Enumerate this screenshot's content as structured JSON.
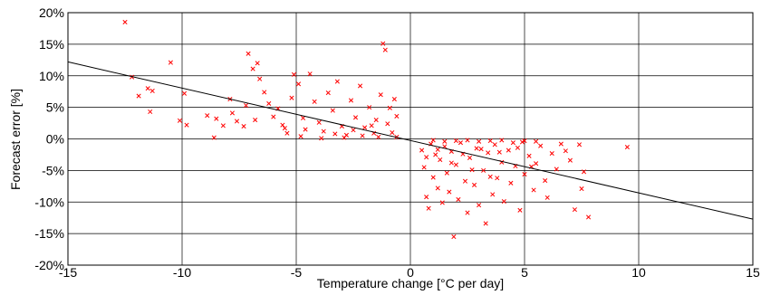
{
  "chart_data": {
    "type": "scatter",
    "xlabel": "Temperature change [°C per day]",
    "ylabel": "Forecast error [%]",
    "xlim": [
      -15,
      15
    ],
    "ylim": [
      -20,
      20
    ],
    "x_ticks": [
      -15,
      -10,
      -5,
      0,
      5,
      10,
      15
    ],
    "y_ticks": [
      -20,
      -15,
      -10,
      -5,
      0,
      5,
      10,
      15,
      20
    ],
    "x_tick_labels": [
      "-15",
      "-10",
      "-5",
      "0",
      "5",
      "10",
      "15"
    ],
    "y_tick_labels": [
      "-20%",
      "-15%",
      "-10%",
      "-5%",
      "0%",
      "5%",
      "10%",
      "15%",
      "20%"
    ],
    "grid": true,
    "marker": "x",
    "marker_color": "#ff0000",
    "series": [
      {
        "values": [
          {
            "x": -12.5,
            "y": 18.5
          },
          {
            "x": -12.2,
            "y": 9.8
          },
          {
            "x": -11.9,
            "y": 6.8
          },
          {
            "x": -11.5,
            "y": 8.0
          },
          {
            "x": -11.3,
            "y": 7.6
          },
          {
            "x": -11.4,
            "y": 4.3
          },
          {
            "x": -10.5,
            "y": 12.1
          },
          {
            "x": -10.1,
            "y": 2.9
          },
          {
            "x": -9.9,
            "y": 7.2
          },
          {
            "x": -9.8,
            "y": 2.2
          },
          {
            "x": -8.9,
            "y": 3.7
          },
          {
            "x": -8.6,
            "y": 0.2
          },
          {
            "x": -8.5,
            "y": 3.2
          },
          {
            "x": -8.2,
            "y": 2.1
          },
          {
            "x": -7.9,
            "y": 6.3
          },
          {
            "x": -7.8,
            "y": 4.1
          },
          {
            "x": -7.6,
            "y": 2.8
          },
          {
            "x": -7.3,
            "y": 2.0
          },
          {
            "x": -7.1,
            "y": 13.5
          },
          {
            "x": -6.9,
            "y": 11.1
          },
          {
            "x": -6.7,
            "y": 12.0
          },
          {
            "x": -6.6,
            "y": 9.5
          },
          {
            "x": -6.4,
            "y": 7.4
          },
          {
            "x": -6.2,
            "y": 5.6
          },
          {
            "x": -6.0,
            "y": 3.5
          },
          {
            "x": -5.8,
            "y": 4.8
          },
          {
            "x": -5.6,
            "y": 2.2
          },
          {
            "x": -5.4,
            "y": 0.9
          },
          {
            "x": -5.2,
            "y": 6.5
          },
          {
            "x": -5.1,
            "y": 10.2
          },
          {
            "x": -4.9,
            "y": 8.7
          },
          {
            "x": -4.7,
            "y": 3.3
          },
          {
            "x": -4.6,
            "y": 1.5
          },
          {
            "x": -4.4,
            "y": 10.3
          },
          {
            "x": -4.2,
            "y": 5.9
          },
          {
            "x": -4.0,
            "y": 2.6
          },
          {
            "x": -3.8,
            "y": 1.2
          },
          {
            "x": -3.6,
            "y": 7.3
          },
          {
            "x": -3.4,
            "y": 4.5
          },
          {
            "x": -3.2,
            "y": 9.1
          },
          {
            "x": -3.0,
            "y": 2.0
          },
          {
            "x": -2.8,
            "y": 0.6
          },
          {
            "x": -2.6,
            "y": 6.1
          },
          {
            "x": -2.4,
            "y": 3.4
          },
          {
            "x": -2.2,
            "y": 8.4
          },
          {
            "x": -2.0,
            "y": 1.8
          },
          {
            "x": -1.8,
            "y": 5.0
          },
          {
            "x": -1.6,
            "y": 0.9
          },
          {
            "x": -1.5,
            "y": 3.0
          },
          {
            "x": -1.3,
            "y": 7.0
          },
          {
            "x": -1.2,
            "y": 15.1
          },
          {
            "x": -1.1,
            "y": 14.1
          },
          {
            "x": -1.0,
            "y": 2.4
          },
          {
            "x": -0.9,
            "y": 4.9
          },
          {
            "x": -0.8,
            "y": 1.0
          },
          {
            "x": -0.7,
            "y": 6.3
          },
          {
            "x": -0.6,
            "y": 0.3
          },
          {
            "x": -0.6,
            "y": 3.6
          },
          {
            "x": -5.5,
            "y": 1.7
          },
          {
            "x": -4.8,
            "y": 0.4
          },
          {
            "x": -3.9,
            "y": 0.1
          },
          {
            "x": -3.3,
            "y": 0.8
          },
          {
            "x": -2.9,
            "y": 0.2
          },
          {
            "x": -2.5,
            "y": 1.4
          },
          {
            "x": -2.1,
            "y": 0.5
          },
          {
            "x": -1.7,
            "y": 2.1
          },
          {
            "x": -1.4,
            "y": 0.3
          },
          {
            "x": -6.8,
            "y": 3.0
          },
          {
            "x": -7.2,
            "y": 5.3
          },
          {
            "x": 0.5,
            "y": -1.8
          },
          {
            "x": 0.6,
            "y": -4.5
          },
          {
            "x": 0.7,
            "y": -9.2
          },
          {
            "x": 0.8,
            "y": -11.0
          },
          {
            "x": 0.9,
            "y": -0.8
          },
          {
            "x": 1.0,
            "y": -6.1
          },
          {
            "x": 1.1,
            "y": -2.5
          },
          {
            "x": 1.2,
            "y": -7.8
          },
          {
            "x": 1.3,
            "y": -3.3
          },
          {
            "x": 1.4,
            "y": -10.1
          },
          {
            "x": 1.5,
            "y": -1.2
          },
          {
            "x": 1.6,
            "y": -5.4
          },
          {
            "x": 1.7,
            "y": -8.4
          },
          {
            "x": 1.8,
            "y": -2.0
          },
          {
            "x": 1.9,
            "y": -15.5
          },
          {
            "x": 2.0,
            "y": -4.1
          },
          {
            "x": 2.1,
            "y": -9.6
          },
          {
            "x": 2.2,
            "y": -0.6
          },
          {
            "x": 2.4,
            "y": -6.7
          },
          {
            "x": 2.5,
            "y": -11.7
          },
          {
            "x": 2.6,
            "y": -3.0
          },
          {
            "x": 2.8,
            "y": -7.3
          },
          {
            "x": 2.9,
            "y": -1.5
          },
          {
            "x": 3.0,
            "y": -10.5
          },
          {
            "x": 3.2,
            "y": -5.0
          },
          {
            "x": 3.3,
            "y": -13.4
          },
          {
            "x": 3.4,
            "y": -2.2
          },
          {
            "x": 3.6,
            "y": -8.8
          },
          {
            "x": 3.7,
            "y": -0.9
          },
          {
            "x": 3.8,
            "y": -6.2
          },
          {
            "x": 4.0,
            "y": -3.7
          },
          {
            "x": 4.1,
            "y": -9.9
          },
          {
            "x": 4.3,
            "y": -1.8
          },
          {
            "x": 4.4,
            "y": -7.0
          },
          {
            "x": 4.6,
            "y": -4.3
          },
          {
            "x": 4.8,
            "y": -11.3
          },
          {
            "x": 4.9,
            "y": -0.5
          },
          {
            "x": 5.0,
            "y": -5.6
          },
          {
            "x": 5.2,
            "y": -2.7
          },
          {
            "x": 5.4,
            "y": -8.1
          },
          {
            "x": 5.5,
            "y": -3.9
          },
          {
            "x": 5.7,
            "y": -1.1
          },
          {
            "x": 5.9,
            "y": -6.6
          },
          {
            "x": 6.0,
            "y": -9.3
          },
          {
            "x": 6.2,
            "y": -2.3
          },
          {
            "x": 6.4,
            "y": -4.8
          },
          {
            "x": 6.6,
            "y": -0.8
          },
          {
            "x": 6.8,
            "y": -1.9
          },
          {
            "x": 7.0,
            "y": -3.4
          },
          {
            "x": 7.2,
            "y": -11.2
          },
          {
            "x": 7.4,
            "y": -0.9
          },
          {
            "x": 7.5,
            "y": -7.9
          },
          {
            "x": 7.6,
            "y": -5.2
          },
          {
            "x": 7.8,
            "y": -12.4
          },
          {
            "x": 9.5,
            "y": -1.3
          },
          {
            "x": 1.0,
            "y": -0.2
          },
          {
            "x": 1.5,
            "y": -0.4
          },
          {
            "x": 2.0,
            "y": -0.3
          },
          {
            "x": 2.5,
            "y": -0.2
          },
          {
            "x": 3.0,
            "y": -0.4
          },
          {
            "x": 3.5,
            "y": -0.3
          },
          {
            "x": 4.0,
            "y": -0.2
          },
          {
            "x": 4.5,
            "y": -0.6
          },
          {
            "x": 5.0,
            "y": -0.3
          },
          {
            "x": 5.5,
            "y": -0.4
          },
          {
            "x": 0.7,
            "y": -2.9
          },
          {
            "x": 1.2,
            "y": -1.7
          },
          {
            "x": 2.3,
            "y": -2.4
          },
          {
            "x": 3.1,
            "y": -1.6
          },
          {
            "x": 3.9,
            "y": -2.1
          },
          {
            "x": 4.7,
            "y": -1.4
          },
          {
            "x": 2.7,
            "y": -4.9
          },
          {
            "x": 1.8,
            "y": -3.8
          },
          {
            "x": 3.5,
            "y": -6.0
          },
          {
            "x": 5.3,
            "y": -4.4
          }
        ]
      }
    ],
    "trend_line": {
      "x": [
        -15,
        15
      ],
      "y": [
        12.2,
        -12.7
      ]
    }
  }
}
